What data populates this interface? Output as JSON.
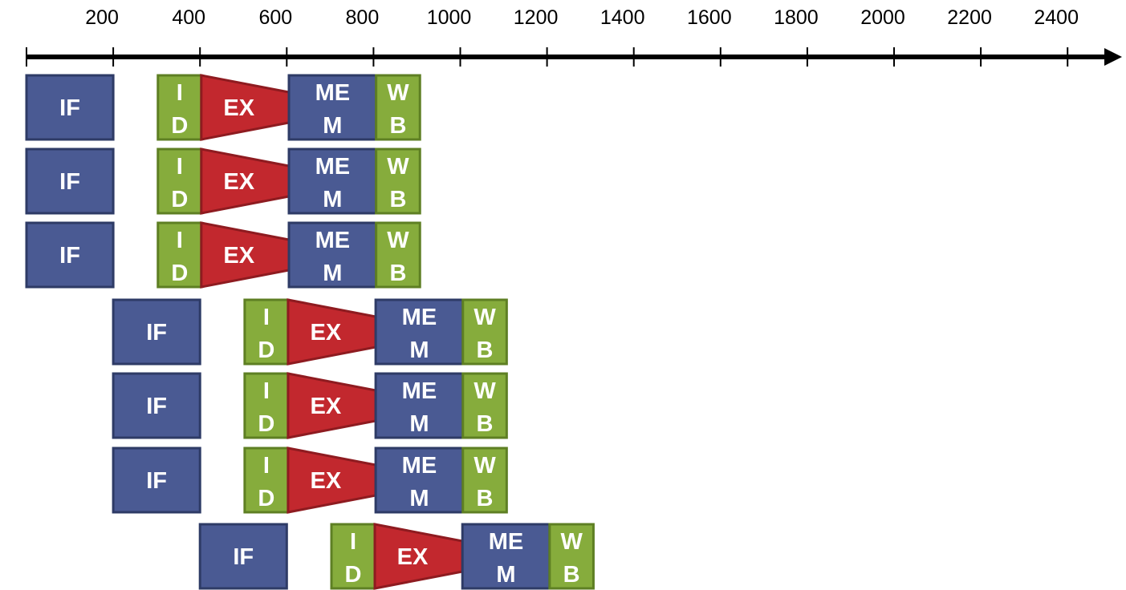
{
  "axis": {
    "ticks": [
      "200",
      "400",
      "600",
      "800",
      "1000",
      "1200",
      "1400",
      "1600",
      "1800",
      "2000",
      "2200",
      "2400"
    ]
  },
  "stages": {
    "if": "IF",
    "id": [
      "I",
      "D"
    ],
    "ex": "EX",
    "mem": [
      "ME",
      "M"
    ],
    "wb": [
      "W",
      "B"
    ]
  },
  "groups": [
    {
      "start": 0,
      "count": 3
    },
    {
      "start": 200,
      "count": 3
    },
    {
      "start": 400,
      "count": 1
    }
  ],
  "colors": {
    "if_fill": "#4a5a93",
    "if_stroke": "#2e3b66",
    "id_fill": "#86ac3c",
    "id_stroke": "#5e7f23",
    "ex_fill": "#c2282e",
    "ex_stroke": "#8e1b20",
    "mem_fill": "#4a5a93",
    "mem_stroke": "#2e3b66",
    "wb_fill": "#86ac3c",
    "wb_stroke": "#5e7f23",
    "axis": "#000000"
  }
}
